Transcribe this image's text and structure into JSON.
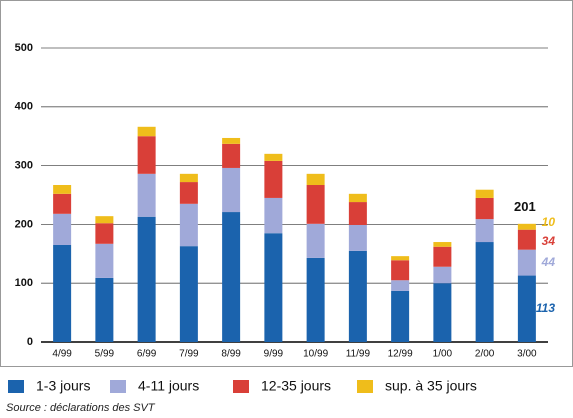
{
  "chart_data": {
    "type": "stacked_bar",
    "categories": [
      "4/99",
      "5/99",
      "6/99",
      "7/99",
      "8/99",
      "9/99",
      "10/99",
      "11/99",
      "12/99",
      "1/00",
      "2/00",
      "3/00"
    ],
    "series": [
      {
        "name": "1-3 jours",
        "color": "#1b63ad",
        "values": [
          165,
          109,
          213,
          163,
          221,
          185,
          143,
          155,
          87,
          100,
          170,
          113
        ],
        "value_labels": [
          null,
          null,
          null,
          null,
          null,
          null,
          null,
          null,
          null,
          null,
          null,
          "113"
        ]
      },
      {
        "name": "4-11 jours",
        "color": "#a0a9d9",
        "values": [
          53,
          58,
          73,
          72,
          75,
          60,
          58,
          44,
          18,
          28,
          39,
          44
        ],
        "value_labels": [
          null,
          null,
          null,
          null,
          null,
          null,
          null,
          null,
          null,
          null,
          null,
          "44"
        ]
      },
      {
        "name": "12-35 jours",
        "color": "#d93f38",
        "values": [
          34,
          35,
          64,
          37,
          41,
          63,
          66,
          39,
          34,
          34,
          36,
          34
        ],
        "value_labels": [
          null,
          null,
          null,
          null,
          null,
          null,
          null,
          null,
          null,
          null,
          null,
          "34"
        ]
      },
      {
        "name": "sup. à 35 jours",
        "color": "#efbd1b",
        "values": [
          15,
          12,
          16,
          14,
          10,
          12,
          19,
          14,
          7,
          8,
          14,
          10
        ],
        "value_labels": [
          null,
          null,
          null,
          null,
          null,
          null,
          null,
          null,
          null,
          null,
          null,
          "10"
        ]
      }
    ],
    "annotations": [
      {
        "category": "3/00",
        "value": 201
      }
    ],
    "ylim": [
      0,
      500
    ],
    "yticks": [
      0,
      100,
      200,
      300,
      400,
      500
    ],
    "grid": true,
    "source": "Source : déclarations des SVT"
  }
}
